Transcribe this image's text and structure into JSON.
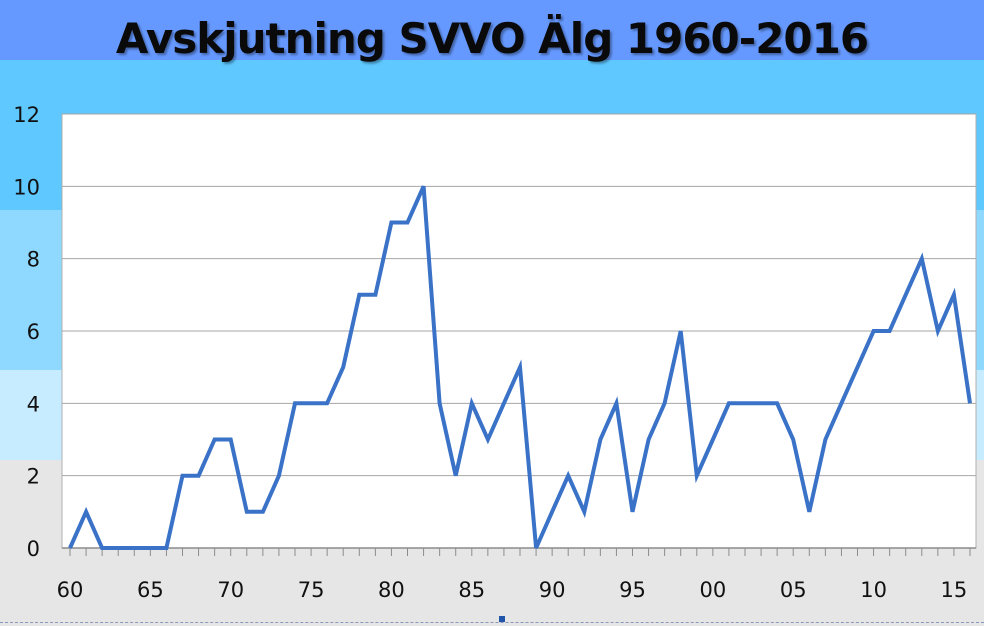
{
  "slide": {
    "title": "Avskjutning SVVO Älg 1960-2016"
  },
  "colors": {
    "line": "#3a72c8",
    "grid": "#a6a6a6",
    "plot_bg": "#ffffff",
    "header_band": "#6699ff"
  },
  "chart_data": {
    "type": "line",
    "title": "Avskjutning SVVO Älg 1960-2016",
    "xlabel": "",
    "ylabel": "",
    "x_tick_labels": [
      "60",
      "65",
      "70",
      "75",
      "80",
      "85",
      "90",
      "95",
      "00",
      "05",
      "10",
      "15"
    ],
    "y_tick_labels": [
      "0",
      "2",
      "4",
      "6",
      "8",
      "10",
      "12"
    ],
    "xlim": [
      1960,
      2016
    ],
    "ylim": [
      0,
      12
    ],
    "grid": true,
    "legend": "none",
    "series": [
      {
        "x": [
          1960,
          1961,
          1962,
          1963,
          1964,
          1965,
          1966,
          1967,
          1968,
          1969,
          1970,
          1971,
          1972,
          1973,
          1974,
          1975,
          1976,
          1977,
          1978,
          1979,
          1980,
          1981,
          1982,
          1983,
          1984,
          1985,
          1986,
          1987,
          1988,
          1989,
          1990,
          1991,
          1992,
          1993,
          1994,
          1995,
          1996,
          1997,
          1998,
          1999,
          2000,
          2001,
          2002,
          2003,
          2004,
          2005,
          2006,
          2007,
          2008,
          2009,
          2010,
          2011,
          2012,
          2013,
          2014,
          2015,
          2016
        ],
        "values": [
          0,
          1,
          0,
          0,
          0,
          0,
          0,
          2,
          2,
          3,
          3,
          1,
          1,
          2,
          4,
          4,
          4,
          5,
          7,
          7,
          9,
          9,
          10,
          4,
          2,
          4,
          3,
          4,
          5,
          0,
          1,
          2,
          1,
          3,
          4,
          1,
          3,
          4,
          6,
          2,
          3,
          4,
          4,
          4,
          4,
          3,
          1,
          3,
          4,
          5,
          6,
          6,
          7,
          8,
          6,
          7,
          4
        ]
      }
    ]
  }
}
